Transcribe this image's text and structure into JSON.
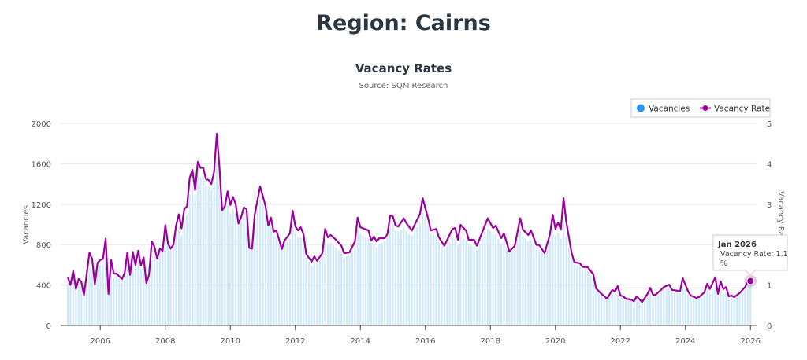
{
  "page": {
    "title": "Region: Cairns"
  },
  "tooltip": {
    "date": "Jan 2026",
    "label": "Vacancy Rate: 1.1",
    "unit": "%"
  },
  "colors": {
    "vacancies": "#2196f3",
    "vacancies_bar": "#cfe8fb",
    "rate": "#990099",
    "grid": "#e6e6e6",
    "axis": "#555555"
  },
  "chart_data": {
    "type": "bar+line",
    "title": "Vacancy Rates",
    "subtitle": "Source: SQM Research",
    "xlabel": "",
    "ylabel": "Vacancies",
    "y2label": "Vacancy Rate",
    "x_start": "2005-01",
    "x_end": "2026-01",
    "x_unit": "months since Jan 2005",
    "xticks": [
      "2006",
      "2008",
      "2010",
      "2012",
      "2014",
      "2016",
      "2018",
      "2020",
      "2022",
      "2024",
      "2026"
    ],
    "ylim": [
      0,
      2000
    ],
    "yticks": [
      "0",
      "400",
      "800",
      "1200",
      "1600",
      "2000"
    ],
    "y2lim": [
      0,
      5
    ],
    "y2ticks": [
      "0",
      "1",
      "2",
      "3",
      "4",
      "5"
    ],
    "legend": {
      "position": "top-right",
      "items": [
        "Vacancies",
        "Vacancy Rate"
      ]
    },
    "series": [
      {
        "name": "Vacancies",
        "type": "bar",
        "points": [
          [
            0,
            445
          ],
          [
            6,
            300
          ],
          [
            12,
            600
          ],
          [
            18,
            475
          ],
          [
            24,
            675
          ],
          [
            30,
            465
          ],
          [
            36,
            920
          ],
          [
            42,
            890
          ],
          [
            48,
            1500
          ],
          [
            54,
            1410
          ],
          [
            60,
            1110
          ],
          [
            66,
            1070
          ],
          [
            72,
            1210
          ],
          [
            78,
            800
          ],
          [
            84,
            910
          ],
          [
            90,
            590
          ],
          [
            96,
            810
          ],
          [
            102,
            665
          ],
          [
            108,
            905
          ],
          [
            114,
            775
          ],
          [
            120,
            1000
          ],
          [
            126,
            900
          ],
          [
            132,
            1050
          ],
          [
            138,
            800
          ],
          [
            144,
            790
          ],
          [
            150,
            790
          ],
          [
            156,
            930
          ],
          [
            162,
            800
          ],
          [
            168,
            880
          ],
          [
            174,
            740
          ],
          [
            180,
            890
          ],
          [
            186,
            670
          ],
          [
            192,
            535
          ],
          [
            198,
            270
          ],
          [
            204,
            275
          ],
          [
            210,
            270
          ],
          [
            216,
            283
          ],
          [
            222,
            375
          ],
          [
            228,
            300
          ],
          [
            234,
            290
          ],
          [
            240,
            290
          ],
          [
            246,
            260
          ],
          [
            252,
            410
          ]
        ]
      },
      {
        "name": "Vacancy Rate",
        "type": "line",
        "unit": "%",
        "points": [
          [
            0,
            1.2
          ],
          [
            1,
            1.0
          ],
          [
            2,
            1.35
          ],
          [
            3,
            0.9
          ],
          [
            4,
            1.15
          ],
          [
            5,
            1.08
          ],
          [
            6,
            0.75
          ],
          [
            8,
            1.8
          ],
          [
            9,
            1.65
          ],
          [
            10,
            1.02
          ],
          [
            11,
            1.55
          ],
          [
            12,
            1.62
          ],
          [
            13,
            1.65
          ],
          [
            14,
            2.15
          ],
          [
            15,
            0.78
          ],
          [
            16,
            1.62
          ],
          [
            17,
            1.28
          ],
          [
            18,
            1.28
          ],
          [
            20,
            1.15
          ],
          [
            21,
            1.3
          ],
          [
            22,
            1.8
          ],
          [
            23,
            1.25
          ],
          [
            24,
            1.82
          ],
          [
            25,
            1.5
          ],
          [
            26,
            1.85
          ],
          [
            27,
            1.48
          ],
          [
            28,
            1.68
          ],
          [
            29,
            1.05
          ],
          [
            30,
            1.25
          ],
          [
            31,
            2.08
          ],
          [
            32,
            1.95
          ],
          [
            33,
            1.65
          ],
          [
            34,
            1.9
          ],
          [
            35,
            1.85
          ],
          [
            36,
            2.48
          ],
          [
            37,
            2.02
          ],
          [
            38,
            1.9
          ],
          [
            39,
            2.0
          ],
          [
            40,
            2.48
          ],
          [
            41,
            2.75
          ],
          [
            42,
            2.4
          ],
          [
            43,
            2.88
          ],
          [
            44,
            2.95
          ],
          [
            45,
            3.65
          ],
          [
            46,
            3.85
          ],
          [
            47,
            3.35
          ],
          [
            48,
            4.05
          ],
          [
            49,
            3.9
          ],
          [
            50,
            3.9
          ],
          [
            51,
            3.62
          ],
          [
            52,
            3.6
          ],
          [
            53,
            3.5
          ],
          [
            54,
            3.8
          ],
          [
            55,
            4.75
          ],
          [
            56,
            3.9
          ],
          [
            57,
            2.85
          ],
          [
            58,
            2.95
          ],
          [
            59,
            3.32
          ],
          [
            60,
            2.98
          ],
          [
            61,
            3.18
          ],
          [
            62,
            3.0
          ],
          [
            63,
            2.52
          ],
          [
            64,
            2.68
          ],
          [
            65,
            2.92
          ],
          [
            66,
            2.88
          ],
          [
            67,
            1.92
          ],
          [
            68,
            1.9
          ],
          [
            69,
            2.74
          ],
          [
            71,
            3.44
          ],
          [
            73,
            2.96
          ],
          [
            74,
            2.47
          ],
          [
            75,
            2.67
          ],
          [
            76,
            2.32
          ],
          [
            77,
            2.35
          ],
          [
            79,
            1.89
          ],
          [
            80,
            2.1
          ],
          [
            82,
            2.28
          ],
          [
            83,
            2.84
          ],
          [
            84,
            2.45
          ],
          [
            85,
            2.35
          ],
          [
            86,
            2.43
          ],
          [
            87,
            2.26
          ],
          [
            88,
            1.77
          ],
          [
            90,
            1.58
          ],
          [
            91,
            1.71
          ],
          [
            92,
            1.6
          ],
          [
            94,
            1.79
          ],
          [
            95,
            2.39
          ],
          [
            96,
            2.18
          ],
          [
            97,
            2.24
          ],
          [
            99,
            2.12
          ],
          [
            101,
            1.97
          ],
          [
            102,
            1.79
          ],
          [
            104,
            1.81
          ],
          [
            106,
            2.08
          ],
          [
            107,
            2.67
          ],
          [
            108,
            2.43
          ],
          [
            111,
            2.35
          ],
          [
            112,
            2.1
          ],
          [
            113,
            2.2
          ],
          [
            114,
            2.08
          ],
          [
            115,
            2.16
          ],
          [
            117,
            2.16
          ],
          [
            118,
            2.26
          ],
          [
            119,
            2.72
          ],
          [
            120,
            2.7
          ],
          [
            121,
            2.47
          ],
          [
            122,
            2.45
          ],
          [
            124,
            2.65
          ],
          [
            125,
            2.53
          ],
          [
            127,
            2.35
          ],
          [
            130,
            2.76
          ],
          [
            131,
            3.15
          ],
          [
            133,
            2.65
          ],
          [
            134,
            2.35
          ],
          [
            136,
            2.39
          ],
          [
            137,
            2.18
          ],
          [
            139,
            1.97
          ],
          [
            142,
            2.39
          ],
          [
            143,
            2.41
          ],
          [
            144,
            2.12
          ],
          [
            145,
            2.49
          ],
          [
            147,
            2.35
          ],
          [
            148,
            2.12
          ],
          [
            150,
            2.12
          ],
          [
            151,
            1.97
          ],
          [
            155,
            2.65
          ],
          [
            157,
            2.41
          ],
          [
            158,
            2.47
          ],
          [
            160,
            2.16
          ],
          [
            161,
            2.28
          ],
          [
            163,
            1.83
          ],
          [
            165,
            1.97
          ],
          [
            167,
            2.65
          ],
          [
            168,
            2.37
          ],
          [
            170,
            2.24
          ],
          [
            171,
            2.35
          ],
          [
            173,
            1.99
          ],
          [
            174,
            1.99
          ],
          [
            176,
            1.79
          ],
          [
            178,
            2.26
          ],
          [
            179,
            2.74
          ],
          [
            180,
            2.39
          ],
          [
            181,
            2.55
          ],
          [
            182,
            2.37
          ],
          [
            183,
            3.15
          ],
          [
            184,
            2.57
          ],
          [
            186,
            1.79
          ],
          [
            187,
            1.56
          ],
          [
            189,
            1.54
          ],
          [
            190,
            1.45
          ],
          [
            192,
            1.44
          ],
          [
            194,
            1.26
          ],
          [
            195,
            0.92
          ],
          [
            197,
            0.78
          ],
          [
            198,
            0.73
          ],
          [
            199,
            0.66
          ],
          [
            201,
            0.88
          ],
          [
            202,
            0.84
          ],
          [
            203,
            0.97
          ],
          [
            204,
            0.74
          ],
          [
            205,
            0.72
          ],
          [
            206,
            0.66
          ],
          [
            208,
            0.64
          ],
          [
            209,
            0.6
          ],
          [
            210,
            0.72
          ],
          [
            212,
            0.58
          ],
          [
            214,
            0.78
          ],
          [
            215,
            0.93
          ],
          [
            216,
            0.76
          ],
          [
            217,
            0.76
          ],
          [
            219,
            0.88
          ],
          [
            220,
            0.95
          ],
          [
            222,
            1.01
          ],
          [
            223,
            0.88
          ],
          [
            225,
            0.86
          ],
          [
            226,
            0.84
          ],
          [
            227,
            1.17
          ],
          [
            229,
            0.84
          ],
          [
            230,
            0.74
          ],
          [
            232,
            0.68
          ],
          [
            233,
            0.7
          ],
          [
            235,
            0.82
          ],
          [
            236,
            1.03
          ],
          [
            237,
            0.9
          ],
          [
            239,
            1.19
          ],
          [
            240,
            0.78
          ],
          [
            241,
            1.09
          ],
          [
            242,
            0.9
          ],
          [
            243,
            0.95
          ],
          [
            244,
            0.72
          ],
          [
            245,
            0.74
          ],
          [
            246,
            0.7
          ],
          [
            248,
            0.8
          ],
          [
            250,
            0.95
          ],
          [
            251,
            1.1
          ],
          [
            252,
            1.1
          ]
        ]
      }
    ]
  }
}
